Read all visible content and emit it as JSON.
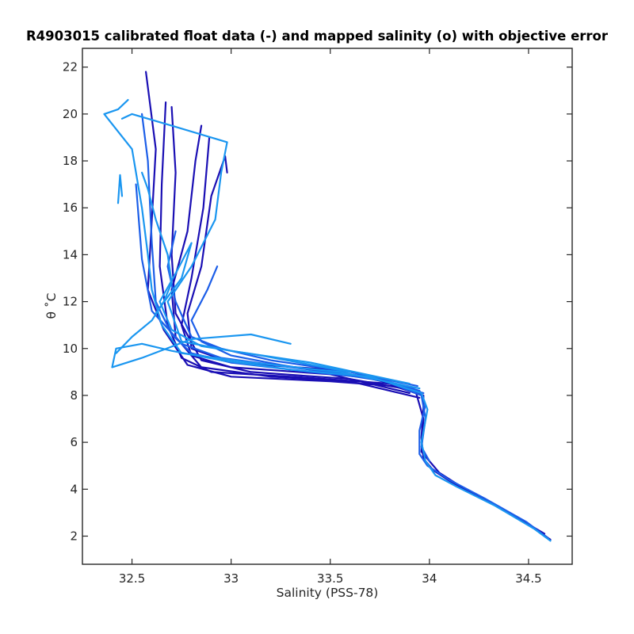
{
  "chart_data": {
    "type": "line",
    "title": "R4903015 calibrated float data (-) and mapped salinity (o) with objective error",
    "xlabel": "Salinity (PSS-78)",
    "ylabel": "θ ˚C",
    "xlim": [
      32.25,
      34.72
    ],
    "ylim": [
      0.8,
      22.8
    ],
    "x_ticks": [
      "32.5",
      "33",
      "33.5",
      "34",
      "34.5"
    ],
    "y_ticks": [
      "2",
      "4",
      "6",
      "8",
      "10",
      "12",
      "14",
      "16",
      "18",
      "20",
      "22"
    ],
    "grid": false,
    "legend": "none",
    "colors": {
      "dark_blue": "#1a0fb4",
      "mid_blue": "#1c5ee8",
      "light_blue": "#1a96f0"
    },
    "series": [
      {
        "color": "#1a0fb4",
        "values": [
          [
            1.85,
            34.61
          ],
          [
            2.4,
            34.52
          ],
          [
            3.4,
            34.32
          ],
          [
            4.2,
            34.13
          ],
          [
            4.8,
            34.02
          ],
          [
            5.3,
            33.97
          ],
          [
            6.2,
            33.96
          ],
          [
            7.5,
            33.97
          ],
          [
            8.0,
            33.97
          ],
          [
            8.4,
            33.82
          ],
          [
            8.6,
            33.5
          ],
          [
            8.8,
            33.0
          ],
          [
            9.3,
            32.78
          ],
          [
            10.8,
            32.66
          ],
          [
            12.5,
            32.58
          ],
          [
            15.5,
            32.6
          ],
          [
            18.5,
            32.62
          ],
          [
            21.8,
            32.57
          ]
        ]
      },
      {
        "color": "#1a0fb4",
        "values": [
          [
            8.0,
            33.96
          ],
          [
            8.5,
            33.8
          ],
          [
            8.75,
            33.4
          ],
          [
            9.0,
            32.9
          ],
          [
            9.6,
            32.75
          ],
          [
            11.0,
            32.68
          ],
          [
            13.5,
            32.64
          ],
          [
            17.0,
            32.65
          ],
          [
            20.5,
            32.67
          ]
        ]
      },
      {
        "color": "#1a0fb4",
        "values": [
          [
            7.9,
            33.95
          ],
          [
            8.6,
            33.6
          ],
          [
            8.8,
            33.2
          ],
          [
            9.2,
            32.85
          ],
          [
            10.5,
            32.72
          ],
          [
            12.5,
            32.7
          ],
          [
            15.0,
            32.78
          ],
          [
            18.0,
            32.82
          ],
          [
            19.5,
            32.85
          ]
        ]
      },
      {
        "color": "#1a0fb4",
        "values": [
          [
            8.1,
            33.9
          ],
          [
            8.9,
            33.5
          ],
          [
            9.2,
            33.0
          ],
          [
            9.7,
            32.8
          ],
          [
            11.0,
            32.75
          ],
          [
            13.0,
            32.8
          ],
          [
            16.0,
            32.86
          ],
          [
            19.0,
            32.89
          ]
        ]
      },
      {
        "color": "#1a0fb4",
        "values": [
          [
            2.1,
            34.58
          ],
          [
            3.1,
            34.38
          ],
          [
            4.0,
            34.18
          ],
          [
            4.7,
            34.05
          ],
          [
            5.6,
            33.96
          ],
          [
            7.0,
            33.97
          ],
          [
            8.2,
            33.93
          ],
          [
            8.7,
            33.6
          ],
          [
            9.0,
            33.1
          ],
          [
            9.5,
            32.85
          ],
          [
            11.5,
            32.72
          ],
          [
            14.0,
            32.7
          ],
          [
            17.5,
            32.72
          ],
          [
            20.3,
            32.7
          ]
        ]
      },
      {
        "color": "#1a0fb4",
        "values": [
          [
            8.3,
            33.92
          ],
          [
            9.1,
            33.5
          ],
          [
            9.4,
            33.0
          ],
          [
            10.0,
            32.8
          ],
          [
            11.5,
            32.78
          ],
          [
            13.5,
            32.85
          ],
          [
            16.5,
            32.9
          ],
          [
            18.2,
            32.97
          ],
          [
            17.5,
            32.98
          ]
        ]
      },
      {
        "color": "#1c5ee8",
        "values": [
          [
            1.9,
            34.6
          ],
          [
            2.6,
            34.49
          ],
          [
            3.6,
            34.28
          ],
          [
            4.4,
            34.1
          ],
          [
            5.0,
            33.99
          ],
          [
            5.5,
            33.95
          ],
          [
            6.5,
            33.95
          ],
          [
            7.6,
            33.98
          ],
          [
            8.2,
            33.95
          ],
          [
            8.7,
            33.75
          ],
          [
            9.0,
            33.4
          ],
          [
            9.4,
            33.0
          ],
          [
            9.8,
            32.8
          ],
          [
            10.6,
            32.7
          ],
          [
            12.0,
            32.62
          ],
          [
            14.5,
            32.6
          ],
          [
            18.0,
            32.58
          ],
          [
            20.0,
            32.55
          ]
        ]
      },
      {
        "color": "#1c5ee8",
        "values": [
          [
            8.1,
            33.97
          ],
          [
            8.8,
            33.7
          ],
          [
            9.2,
            33.3
          ],
          [
            9.6,
            32.95
          ],
          [
            10.2,
            32.75
          ],
          [
            11.6,
            32.6
          ],
          [
            13.8,
            32.55
          ],
          [
            17.0,
            32.52
          ]
        ]
      },
      {
        "color": "#1c5ee8",
        "values": [
          [
            8.4,
            33.94
          ],
          [
            9.0,
            33.6
          ],
          [
            9.5,
            33.2
          ],
          [
            10.0,
            32.95
          ],
          [
            10.5,
            32.8
          ],
          [
            12.0,
            32.72
          ],
          [
            13.5,
            32.68
          ],
          [
            15.0,
            32.72
          ]
        ]
      },
      {
        "color": "#1c5ee8",
        "values": [
          [
            5.2,
            34.0
          ],
          [
            5.8,
            33.96
          ],
          [
            7.0,
            33.98
          ],
          [
            8.0,
            33.96
          ],
          [
            8.6,
            33.78
          ],
          [
            8.9,
            33.55
          ],
          [
            9.3,
            33.25
          ],
          [
            9.7,
            33.0
          ],
          [
            10.3,
            32.85
          ],
          [
            11.2,
            32.8
          ],
          [
            12.5,
            32.88
          ],
          [
            13.5,
            32.93
          ]
        ]
      },
      {
        "color": "#1a96f0",
        "values": [
          [
            1.8,
            34.61
          ],
          [
            2.3,
            34.53
          ],
          [
            3.3,
            34.33
          ],
          [
            4.1,
            34.14
          ],
          [
            4.6,
            34.03
          ],
          [
            5.2,
            33.98
          ],
          [
            6.0,
            33.96
          ],
          [
            7.4,
            33.99
          ],
          [
            8.1,
            33.96
          ],
          [
            8.8,
            33.7
          ],
          [
            9.1,
            33.3
          ],
          [
            9.5,
            32.95
          ],
          [
            9.9,
            32.7
          ],
          [
            10.2,
            32.55
          ],
          [
            10.0,
            32.42
          ],
          [
            9.2,
            32.4
          ],
          [
            9.6,
            32.55
          ],
          [
            10.4,
            32.8
          ],
          [
            10.6,
            33.1
          ],
          [
            10.2,
            33.3
          ]
        ]
      },
      {
        "color": "#1a96f0",
        "values": [
          [
            8.3,
            33.95
          ],
          [
            9.0,
            33.55
          ],
          [
            9.4,
            33.1
          ],
          [
            9.8,
            32.75
          ],
          [
            11.0,
            32.65
          ],
          [
            12.5,
            32.6
          ],
          [
            14.0,
            32.58
          ],
          [
            16.0,
            32.55
          ],
          [
            18.5,
            32.5
          ],
          [
            20.0,
            32.36
          ],
          [
            20.2,
            32.43
          ],
          [
            20.6,
            32.48
          ]
        ]
      },
      {
        "color": "#1a96f0",
        "values": [
          [
            8.5,
            33.9
          ],
          [
            9.4,
            33.4
          ],
          [
            9.9,
            33.0
          ],
          [
            10.3,
            32.75
          ],
          [
            12.0,
            32.68
          ],
          [
            13.5,
            32.8
          ],
          [
            15.5,
            32.92
          ],
          [
            17.5,
            32.95
          ],
          [
            18.8,
            32.98
          ],
          [
            19.5,
            32.7
          ],
          [
            20.0,
            32.5
          ],
          [
            19.8,
            32.45
          ]
        ]
      },
      {
        "color": "#1a96f0",
        "values": [
          [
            9.0,
            33.6
          ],
          [
            9.7,
            33.15
          ],
          [
            10.1,
            32.85
          ],
          [
            10.8,
            32.7
          ],
          [
            12.0,
            32.64
          ],
          [
            13.2,
            32.72
          ],
          [
            14.5,
            32.8
          ],
          [
            13.0,
            32.75
          ],
          [
            12.2,
            32.68
          ],
          [
            11.5,
            32.62
          ]
        ]
      },
      {
        "color": "#1a96f0",
        "values": [
          [
            9.8,
            32.42
          ],
          [
            10.5,
            32.5
          ],
          [
            11.2,
            32.6
          ],
          [
            12.0,
            32.66
          ],
          [
            12.8,
            32.7
          ],
          [
            14.0,
            32.68
          ],
          [
            15.5,
            32.62
          ],
          [
            16.8,
            32.58
          ],
          [
            17.5,
            32.55
          ]
        ]
      },
      {
        "color": "#1a96f0",
        "values": [
          [
            16.2,
            32.43
          ],
          [
            17.4,
            32.44
          ],
          [
            16.5,
            32.45
          ]
        ]
      }
    ]
  }
}
